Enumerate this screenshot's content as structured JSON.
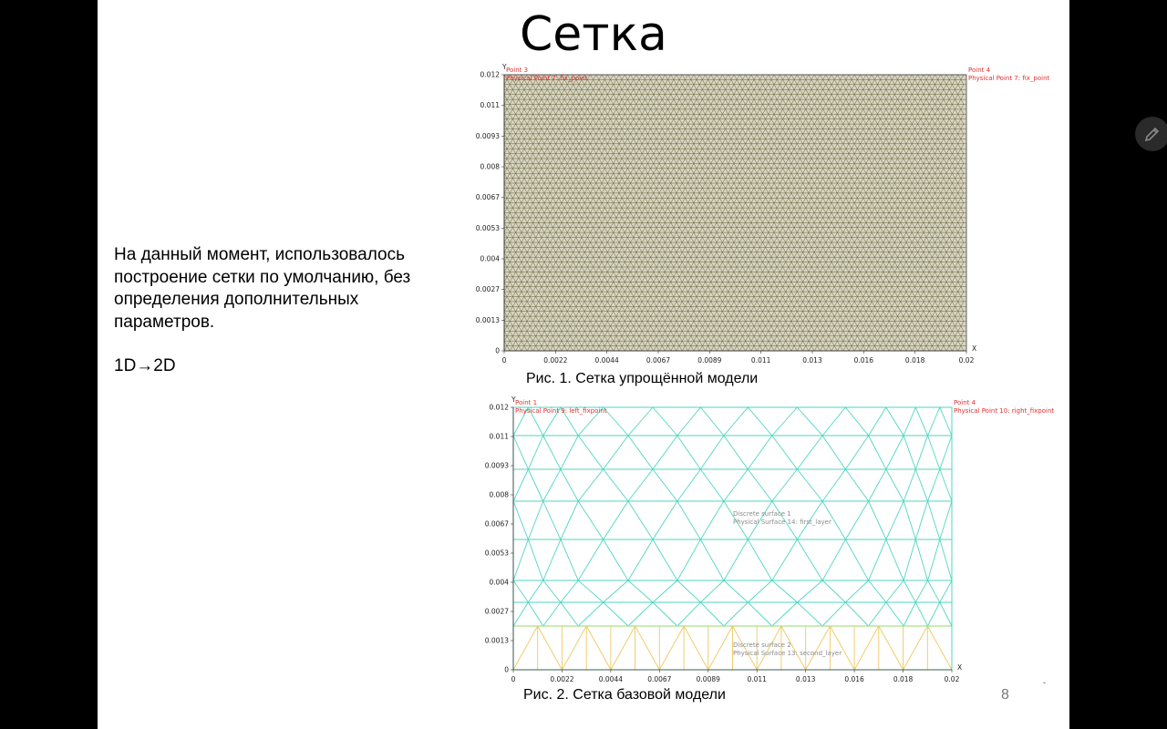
{
  "slide": {
    "title": "Сетка",
    "body_lines": [
      "На данный момент, использовалось",
      "построение сетки по умолчанию, без",
      "определения дополнительных",
      "параметров."
    ],
    "body_extra": "1D→2D",
    "caption1": "Рис. 1. Сетка упрощённой модели",
    "caption2": "Рис. 2. Сетка базовой модели",
    "page_number": "8"
  },
  "fig1": {
    "axis_y": "Y",
    "axis_x": "X",
    "y_ticks": [
      "0.012",
      "0.011",
      "0.0093",
      "0.008",
      "0.0067",
      "0.0053",
      "0.004",
      "0.0027",
      "0.0013",
      "0"
    ],
    "x_ticks": [
      "0",
      "0.0022",
      "0.0044",
      "0.0067",
      "0.0089",
      "0.011",
      "0.013",
      "0.016",
      "0.018",
      "0.02"
    ],
    "point_left": "Point 3",
    "point_left_physical": "Physical Point 7: fix_point",
    "point_right": "Point 4",
    "point_right_physical": "Physical Point 7: fix_point",
    "mesh_color": "#5a5a2a",
    "label_color": "#e03030"
  },
  "fig2": {
    "axis_y": "Y",
    "axis_x": "X",
    "y_ticks": [
      "0.012",
      "0.011",
      "0.0093",
      "0.008",
      "0.0067",
      "0.0053",
      "0.004",
      "0.0027",
      "0.0013",
      "0"
    ],
    "x_ticks": [
      "0",
      "0.0022",
      "0.0044",
      "0.0067",
      "0.0089",
      "0.011",
      "0.013",
      "0.016",
      "0.018",
      "0.02"
    ],
    "point_left": "Point 1",
    "point_left_physical": "Physical Point 9: left_fixpoint",
    "point_right": "Point 4",
    "point_right_physical": "Physical Point 10: right_fixpoint",
    "surface1_a": "Discrete surface 1",
    "surface1_b": "Physical Surface 14: first_layer",
    "surface2_a": "Discrete surface 2",
    "surface2_b": "Physical Surface 13: second_layer",
    "upper_mesh_color": "#4fd6c0",
    "lower_mesh_color": "#f0c860",
    "label_color": "#e03030"
  },
  "ui": {
    "pen_icon": "pen-icon"
  }
}
